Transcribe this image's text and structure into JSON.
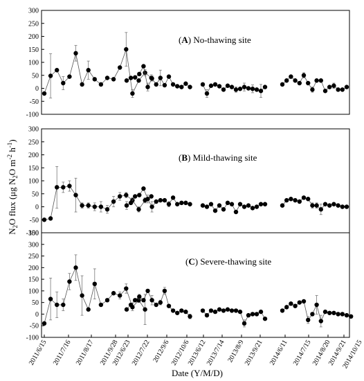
{
  "figure": {
    "ylabel_pre": "N",
    "ylabel_sub1": "2",
    "ylabel_mid": "O flux (μg N",
    "ylabel_sub2": "2",
    "ylabel_mid2": "O m",
    "ylabel_sup1": "-2",
    "ylabel_mid3": " h",
    "ylabel_sup2": "-1",
    "ylabel_post": ")",
    "xlabel": "Date (Y/M/D)",
    "xtick_labels": [
      "2011/6/15",
      "2011/7/16",
      "2011/8/17",
      "2011/9/28",
      "2012/6/23",
      "2012/7/22",
      "2012/9/6",
      "2012/10/6",
      "2013/6/12",
      "2013/7/14",
      "2013/8/9",
      "2013/9/21",
      "2014/6/11",
      "2014/7/15",
      "2014/8/20",
      "2014/9/21",
      "2014/10/15"
    ]
  },
  "chart_data": [
    {
      "type": "scatter",
      "panel_letter": "A",
      "panel_title": "No-thawing site",
      "ylim": [
        -100,
        300
      ],
      "yticks": [
        -100,
        -50,
        0,
        50,
        100,
        150,
        200,
        250,
        300
      ],
      "segments": [
        {
          "x": [
            0,
            1,
            2,
            3,
            4,
            5,
            6,
            7,
            8,
            9,
            10,
            11,
            12,
            13,
            14,
            15,
            16,
            17,
            18,
            19,
            20
          ],
          "y": [
            -20,
            48,
            70,
            20,
            45,
            135,
            15,
            70,
            35,
            15,
            40,
            35,
            80,
            150,
            -20,
            30,
            60,
            40,
            null,
            null,
            null
          ],
          "err": [
            0,
            85,
            0,
            25,
            0,
            30,
            0,
            35,
            0,
            0,
            0,
            0,
            0,
            65,
            15,
            0,
            12,
            12,
            null,
            null,
            null
          ]
        },
        {
          "x": [
            0,
            1,
            2,
            3,
            4,
            5,
            6,
            7,
            8,
            9,
            10,
            11,
            12,
            13,
            14,
            15,
            16,
            17
          ],
          "y": [
            30,
            40,
            42,
            55,
            85,
            5,
            38,
            15,
            40,
            12,
            45,
            15,
            8,
            5,
            18,
            5,
            null,
            null
          ],
          "err": [
            0,
            0,
            0,
            0,
            0,
            15,
            10,
            0,
            30,
            0,
            0,
            0,
            0,
            0,
            0,
            0,
            null,
            null
          ]
        },
        {
          "x": [
            0,
            1,
            2,
            3,
            4,
            5,
            6,
            7,
            8,
            9,
            10,
            11,
            12,
            13,
            14,
            15,
            16
          ],
          "y": [
            15,
            -20,
            10,
            15,
            8,
            -5,
            10,
            5,
            -5,
            -2,
            5,
            0,
            -2,
            -5,
            -10,
            5,
            null
          ],
          "err": [
            0,
            15,
            0,
            0,
            0,
            0,
            0,
            0,
            10,
            0,
            15,
            0,
            15,
            0,
            25,
            0,
            null
          ]
        },
        {
          "x": [
            0,
            1,
            2,
            3,
            4,
            5,
            6,
            7,
            8,
            9,
            10,
            11,
            12,
            13,
            14,
            15,
            16
          ],
          "y": [
            15,
            30,
            45,
            30,
            20,
            50,
            20,
            -5,
            30,
            30,
            -10,
            5,
            10,
            -5,
            -5,
            5,
            null
          ],
          "err": [
            0,
            0,
            0,
            0,
            0,
            10,
            0,
            10,
            0,
            0,
            0,
            0,
            10,
            0,
            0,
            0,
            null
          ]
        }
      ]
    },
    {
      "type": "scatter",
      "panel_letter": "B",
      "panel_title": "Mild-thawing site",
      "ylim": [
        -100,
        300
      ],
      "yticks": [
        -100,
        -50,
        0,
        50,
        100,
        150,
        200,
        250,
        300
      ],
      "segments": [
        {
          "x": [
            0,
            1,
            2,
            3,
            4,
            5,
            6,
            7,
            8,
            9,
            10,
            11,
            12,
            13,
            14,
            15,
            16,
            17,
            18,
            19,
            20
          ],
          "y": [
            -50,
            -45,
            75,
            75,
            80,
            45,
            5,
            5,
            0,
            0,
            -10,
            20,
            40,
            45,
            25,
            -10,
            25,
            40,
            null,
            null,
            null
          ],
          "err": [
            0,
            0,
            80,
            20,
            20,
            65,
            10,
            10,
            15,
            20,
            15,
            20,
            15,
            10,
            10,
            10,
            10,
            0,
            null,
            null,
            null
          ]
        },
        {
          "x": [
            0,
            1,
            2,
            3,
            4,
            5,
            6,
            7,
            8,
            9,
            10,
            11,
            12,
            13,
            14,
            15,
            16,
            17
          ],
          "y": [
            5,
            15,
            40,
            45,
            70,
            30,
            0,
            20,
            25,
            25,
            10,
            35,
            10,
            15,
            15,
            10,
            null,
            null
          ],
          "err": [
            15,
            0,
            0,
            0,
            0,
            15,
            20,
            0,
            0,
            0,
            10,
            0,
            0,
            0,
            0,
            0,
            null,
            null
          ]
        },
        {
          "x": [
            0,
            1,
            2,
            3,
            4,
            5,
            6,
            7,
            8,
            9,
            10,
            11,
            12,
            13,
            14,
            15,
            16
          ],
          "y": [
            5,
            0,
            10,
            -15,
            5,
            -10,
            15,
            10,
            -20,
            10,
            0,
            5,
            -5,
            0,
            10,
            10,
            null
          ],
          "err": [
            0,
            0,
            0,
            0,
            0,
            0,
            0,
            0,
            0,
            0,
            0,
            0,
            0,
            0,
            0,
            0,
            null
          ]
        },
        {
          "x": [
            0,
            1,
            2,
            3,
            4,
            5,
            6,
            7,
            8,
            9,
            10,
            11,
            12,
            13,
            14,
            15,
            16
          ],
          "y": [
            5,
            25,
            30,
            25,
            20,
            35,
            30,
            5,
            5,
            -10,
            10,
            5,
            10,
            5,
            0,
            0,
            null
          ],
          "err": [
            0,
            0,
            0,
            0,
            0,
            0,
            0,
            10,
            10,
            20,
            0,
            0,
            0,
            0,
            0,
            0,
            null
          ]
        }
      ]
    },
    {
      "type": "scatter",
      "panel_letter": "C",
      "panel_title": "Severe-thawing site",
      "ylim": [
        -100,
        350
      ],
      "yticks": [
        -100,
        -50,
        0,
        50,
        100,
        150,
        200,
        250,
        300,
        350
      ],
      "segments": [
        {
          "x": [
            0,
            1,
            2,
            3,
            4,
            5,
            6,
            7,
            8,
            9,
            10,
            11,
            12,
            13,
            14,
            15,
            16,
            17,
            18,
            19,
            20
          ],
          "y": [
            -40,
            65,
            40,
            40,
            140,
            200,
            80,
            20,
            130,
            40,
            60,
            90,
            80,
            110,
            30,
            60,
            20,
            null,
            null,
            null,
            null
          ],
          "err": [
            0,
            90,
            55,
            25,
            35,
            55,
            85,
            0,
            65,
            0,
            0,
            0,
            15,
            20,
            15,
            10,
            65,
            null,
            null,
            null,
            null
          ]
        },
        {
          "x": [
            0,
            1,
            2,
            3,
            4,
            5,
            6,
            7,
            8,
            9,
            10,
            11,
            12,
            13,
            14,
            15,
            16,
            17
          ],
          "y": [
            20,
            40,
            60,
            75,
            60,
            100,
            60,
            40,
            50,
            100,
            35,
            15,
            5,
            15,
            10,
            -10,
            null,
            null
          ],
          "err": [
            0,
            0,
            0,
            10,
            0,
            0,
            20,
            0,
            10,
            15,
            0,
            0,
            0,
            0,
            0,
            10,
            null,
            null
          ]
        },
        {
          "x": [
            0,
            1,
            2,
            3,
            4,
            5,
            6,
            7,
            8,
            9,
            10,
            11,
            12,
            13,
            14,
            15,
            16
          ],
          "y": [
            15,
            -5,
            15,
            10,
            20,
            15,
            20,
            15,
            15,
            10,
            -40,
            -5,
            0,
            0,
            10,
            -20,
            null
          ],
          "err": [
            0,
            0,
            0,
            0,
            0,
            0,
            0,
            0,
            0,
            0,
            15,
            0,
            0,
            0,
            0,
            0,
            null
          ]
        },
        {
          "x": [
            0,
            1,
            2,
            3,
            4,
            5,
            6,
            7,
            8,
            9,
            10,
            11,
            12,
            13,
            14,
            15,
            16
          ],
          "y": [
            15,
            30,
            45,
            35,
            50,
            55,
            -25,
            0,
            40,
            -30,
            10,
            5,
            5,
            0,
            0,
            -5,
            -10
          ],
          "err": [
            0,
            0,
            0,
            0,
            0,
            0,
            15,
            0,
            40,
            25,
            0,
            0,
            0,
            0,
            0,
            0,
            0
          ]
        }
      ]
    }
  ]
}
